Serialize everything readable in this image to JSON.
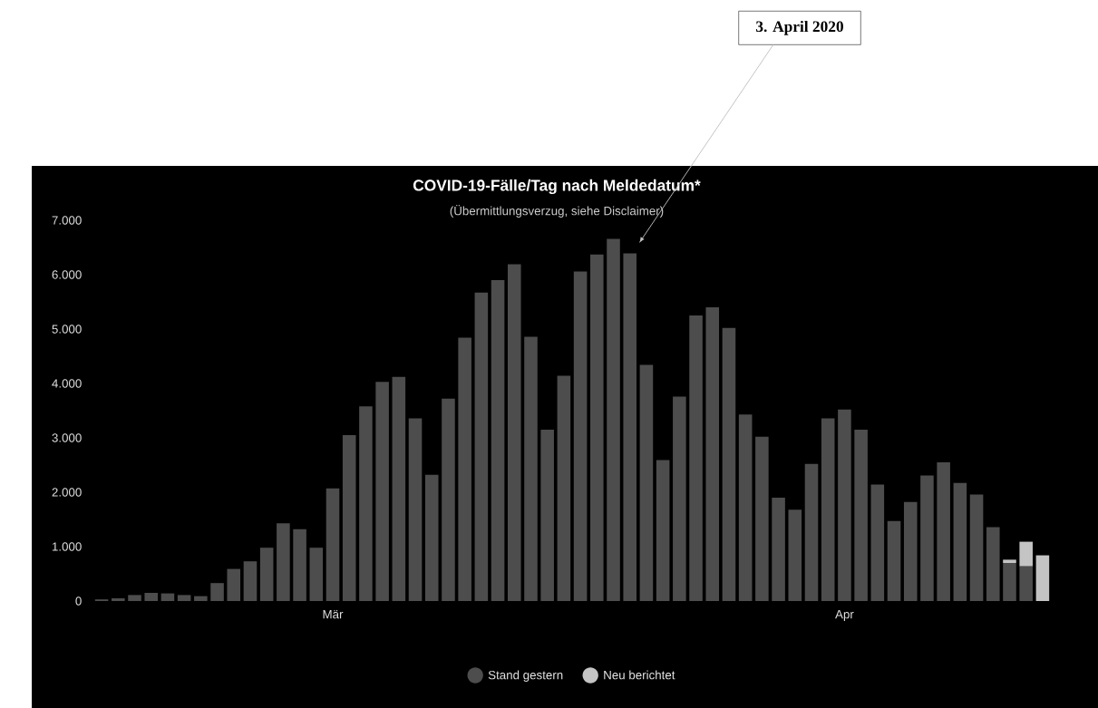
{
  "chart_data": {
    "type": "bar",
    "title": "COVID-19-Fälle/Tag nach Meldedatum*",
    "subtitle": "(Übermittlungsverzug, siehe Disclaimer)",
    "annotations": [
      "3. April 2020"
    ],
    "categories": [
      null,
      null,
      null,
      null,
      null,
      null,
      null,
      null,
      null,
      null,
      null,
      null,
      null,
      null,
      "Mär",
      null,
      null,
      null,
      null,
      null,
      null,
      null,
      null,
      null,
      null,
      null,
      null,
      null,
      null,
      null,
      null,
      null,
      null,
      null,
      null,
      null,
      null,
      null,
      null,
      null,
      null,
      null,
      null,
      null,
      null,
      "Apr",
      null,
      null,
      null,
      null,
      null,
      null,
      null,
      null,
      null,
      null,
      null,
      null
    ],
    "ylim": [
      0,
      7000
    ],
    "yticks": [
      {
        "value": 0,
        "label": "0"
      },
      {
        "value": 1000,
        "label": "1.000"
      },
      {
        "value": 2000,
        "label": "2.000"
      },
      {
        "value": 3000,
        "label": "3.000"
      },
      {
        "value": 4000,
        "label": "4.000"
      },
      {
        "value": 5000,
        "label": "5.000"
      },
      {
        "value": 6000,
        "label": "6.000"
      },
      {
        "value": 7000,
        "label": "7.000"
      }
    ],
    "stacked": true,
    "legend": "bottom",
    "series": [
      {
        "name": "Stand gestern",
        "color": "#4d4d4d",
        "values": [
          30,
          50,
          110,
          150,
          140,
          110,
          90,
          330,
          590,
          730,
          980,
          1430,
          1320,
          980,
          2070,
          3050,
          3580,
          4030,
          4120,
          3360,
          2320,
          3720,
          4840,
          5670,
          5900,
          6190,
          4860,
          3150,
          4140,
          6060,
          6370,
          6660,
          6390,
          4340,
          2590,
          3760,
          5250,
          5400,
          5020,
          3430,
          3020,
          1900,
          1680,
          2520,
          3360,
          3520,
          3150,
          2140,
          1470,
          1820,
          2310,
          2550,
          2170,
          1960,
          1360,
          700,
          640,
          null
        ]
      },
      {
        "name": "Neu berichtet",
        "color": "#c4c4c4",
        "values": [
          null,
          null,
          null,
          null,
          null,
          null,
          null,
          null,
          null,
          null,
          null,
          null,
          null,
          null,
          null,
          null,
          null,
          null,
          null,
          null,
          null,
          null,
          null,
          null,
          null,
          null,
          null,
          null,
          null,
          null,
          null,
          null,
          null,
          null,
          null,
          null,
          null,
          null,
          null,
          null,
          null,
          null,
          null,
          null,
          null,
          null,
          null,
          null,
          null,
          null,
          null,
          null,
          null,
          null,
          null,
          60,
          450,
          840
        ]
      }
    ]
  }
}
